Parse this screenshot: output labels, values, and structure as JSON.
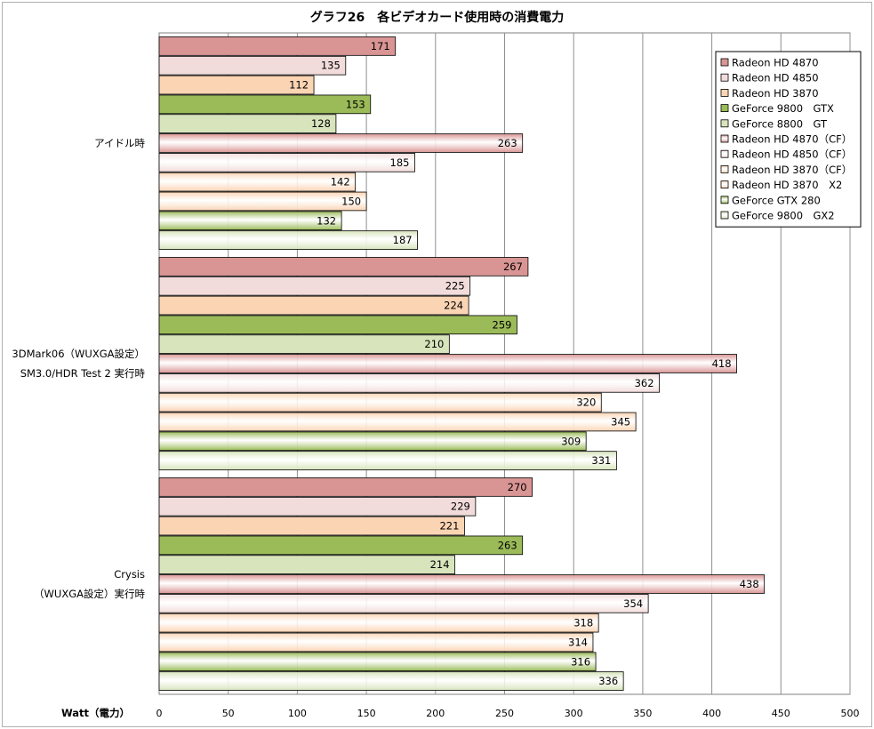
{
  "chart_data": {
    "type": "bar",
    "orientation": "horizontal",
    "title": "グラフ26　各ビデオカード使用時の消費電力",
    "xlabel": "Watt（電力）",
    "xlim": [
      0,
      500
    ],
    "xticks": [
      0,
      50,
      100,
      150,
      200,
      250,
      300,
      350,
      400,
      450,
      500
    ],
    "grid": true,
    "legend_position": "top-right",
    "categories": [
      [
        "アイドル時"
      ],
      [
        "3DMark06（WUXGA設定）",
        "SM3.0/HDR Test 2 実行時"
      ],
      [
        "Crysis",
        "（WUXGA設定）実行時"
      ]
    ],
    "series": [
      {
        "name": "Radeon HD 4870",
        "color": "#d99594",
        "values": [
          171,
          267,
          270
        ]
      },
      {
        "name": "Radeon HD 4850",
        "color": "#f2dcdb",
        "values": [
          135,
          225,
          229
        ]
      },
      {
        "name": "Radeon HD 3870",
        "color": "#fbd4b4",
        "values": [
          112,
          224,
          221
        ]
      },
      {
        "name": "GeForce 9800　GTX",
        "color": "#9bbb59",
        "values": [
          153,
          259,
          263
        ]
      },
      {
        "name": "GeForce 8800　GT",
        "color": "#d7e4bc",
        "values": [
          128,
          210,
          214
        ]
      },
      {
        "name": "Radeon HD 4870（CF）",
        "color": "#d99594",
        "gradient": true,
        "values": [
          263,
          418,
          438
        ]
      },
      {
        "name": "Radeon HD 4850（CF）",
        "color": "#f2dcdb",
        "gradient": true,
        "values": [
          185,
          362,
          354
        ]
      },
      {
        "name": "Radeon HD 3870（CF）",
        "color": "#fbd4b4",
        "gradient": true,
        "values": [
          142,
          320,
          318
        ]
      },
      {
        "name": "Radeon HD 3870　X2",
        "color": "#fbd4b4",
        "gradient": true,
        "values": [
          150,
          345,
          314
        ]
      },
      {
        "name": "GeForce GTX 280",
        "color": "#9bbb59",
        "gradient": true,
        "values": [
          132,
          309,
          316
        ]
      },
      {
        "name": "GeForce 9800　GX2",
        "color": "#d7e4bc",
        "gradient": true,
        "values": [
          187,
          331,
          336
        ]
      }
    ]
  }
}
